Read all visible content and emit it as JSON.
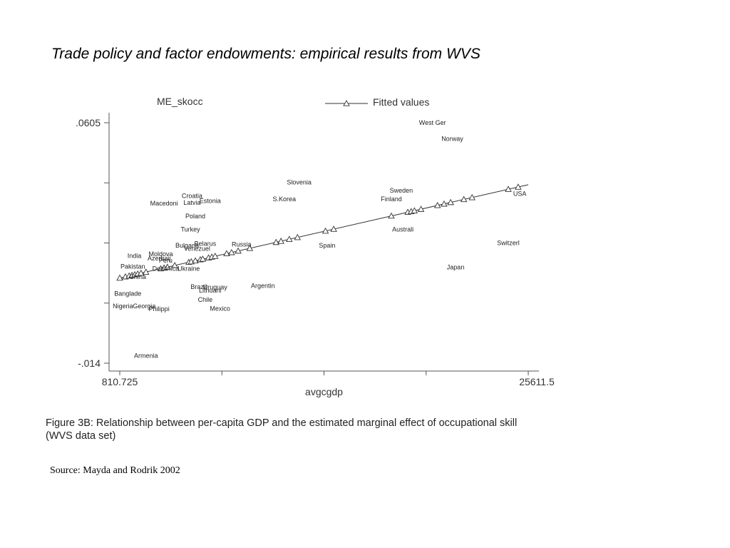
{
  "slide": {
    "title": "Trade policy and factor endowments: empirical results from WVS",
    "caption": "Figure 3B: Relationship between per-capita GDP and the estimated marginal effect of occupational skill (WVS data set)",
    "source": "Source: Mayda and Rodrik 2002"
  },
  "chart_data": {
    "type": "scatter",
    "ylabel": "ME_skocc",
    "xlabel": "avgcgdp",
    "xlim": [
      810.725,
      25611.5
    ],
    "ylim": [
      -0.014,
      0.0605
    ],
    "x_tick_labels": [
      "810.725",
      "25611.5"
    ],
    "y_tick_labels": [
      ".0605",
      "-.014"
    ],
    "legend": {
      "label": "Fitted values",
      "position": "top-right"
    },
    "series": [
      {
        "name": "ME_skocc",
        "points": [
          {
            "label": "West Ger",
            "x": 19800,
            "y": 0.0605
          },
          {
            "label": "Norway",
            "x": 21000,
            "y": 0.0555
          },
          {
            "label": "Slovenia",
            "x": 11700,
            "y": 0.042
          },
          {
            "label": "Sweden",
            "x": 17900,
            "y": 0.0395
          },
          {
            "label": "USA",
            "x": 25100,
            "y": 0.0385
          },
          {
            "label": "Croatia",
            "x": 5200,
            "y": 0.0378
          },
          {
            "label": "Finland",
            "x": 17300,
            "y": 0.0368
          },
          {
            "label": "S.Korea",
            "x": 10800,
            "y": 0.0368
          },
          {
            "label": "Estonia",
            "x": 6300,
            "y": 0.0363
          },
          {
            "label": "Latvia",
            "x": 5200,
            "y": 0.0357
          },
          {
            "label": "Macedoni",
            "x": 3500,
            "y": 0.0355
          },
          {
            "label": "Poland",
            "x": 5400,
            "y": 0.0315
          },
          {
            "label": "Australi",
            "x": 18000,
            "y": 0.0275
          },
          {
            "label": "Turkey",
            "x": 5100,
            "y": 0.0275
          },
          {
            "label": "Belarus",
            "x": 6000,
            "y": 0.023
          },
          {
            "label": "Russia",
            "x": 8200,
            "y": 0.0228
          },
          {
            "label": "Bulgaria",
            "x": 4900,
            "y": 0.0225
          },
          {
            "label": "Switzerl",
            "x": 24400,
            "y": 0.0232
          },
          {
            "label": "Spain",
            "x": 13400,
            "y": 0.0225
          },
          {
            "label": "Venezuel",
            "x": 5500,
            "y": 0.0215
          },
          {
            "label": "Moldova",
            "x": 3300,
            "y": 0.0198
          },
          {
            "label": "India",
            "x": 1700,
            "y": 0.0193
          },
          {
            "label": "Azerbaij",
            "x": 3200,
            "y": 0.0185
          },
          {
            "label": "Peru",
            "x": 3600,
            "y": 0.0178
          },
          {
            "label": "Pakistan",
            "x": 1600,
            "y": 0.016
          },
          {
            "label": "Dominica",
            "x": 3600,
            "y": 0.0153
          },
          {
            "label": "Ukraine",
            "x": 5000,
            "y": 0.0153
          },
          {
            "label": "Japan",
            "x": 21200,
            "y": 0.0157
          },
          {
            "label": "China",
            "x": 1900,
            "y": 0.0128
          },
          {
            "label": "Argentin",
            "x": 9500,
            "y": 0.01
          },
          {
            "label": "Brazil",
            "x": 5600,
            "y": 0.0097
          },
          {
            "label": "Uruguay",
            "x": 6600,
            "y": 0.0095
          },
          {
            "label": "Lithuani",
            "x": 6300,
            "y": 0.0085
          },
          {
            "label": "Banglade",
            "x": 1300,
            "y": 0.0075
          },
          {
            "label": "Chile",
            "x": 6000,
            "y": 0.0057
          },
          {
            "label": "Nigeria",
            "x": 1000,
            "y": 0.0037
          },
          {
            "label": "Georgia",
            "x": 2300,
            "y": 0.0037
          },
          {
            "label": "Philippi",
            "x": 3200,
            "y": 0.0028
          },
          {
            "label": "Mexico",
            "x": 6900,
            "y": 0.0029
          },
          {
            "label": "Armenia",
            "x": 2400,
            "y": -0.0117
          }
        ]
      },
      {
        "name": "Fitted values",
        "line": [
          [
            810.725,
            0.0124
          ],
          [
            25611.5,
            0.0413
          ]
        ],
        "markers_x": [
          810.725,
          1150,
          1380,
          1550,
          1720,
          1900,
          2100,
          2400,
          3300,
          3500,
          3700,
          4150,
          5000,
          5150,
          5400,
          5700,
          5850,
          6200,
          6400,
          6600,
          7300,
          7600,
          8000,
          8700,
          10300,
          10600,
          11100,
          11600,
          13300,
          13800,
          17300,
          18300,
          18500,
          18700,
          19100,
          20100,
          20500,
          20900,
          21700,
          22200,
          24400,
          25000
        ]
      }
    ]
  }
}
